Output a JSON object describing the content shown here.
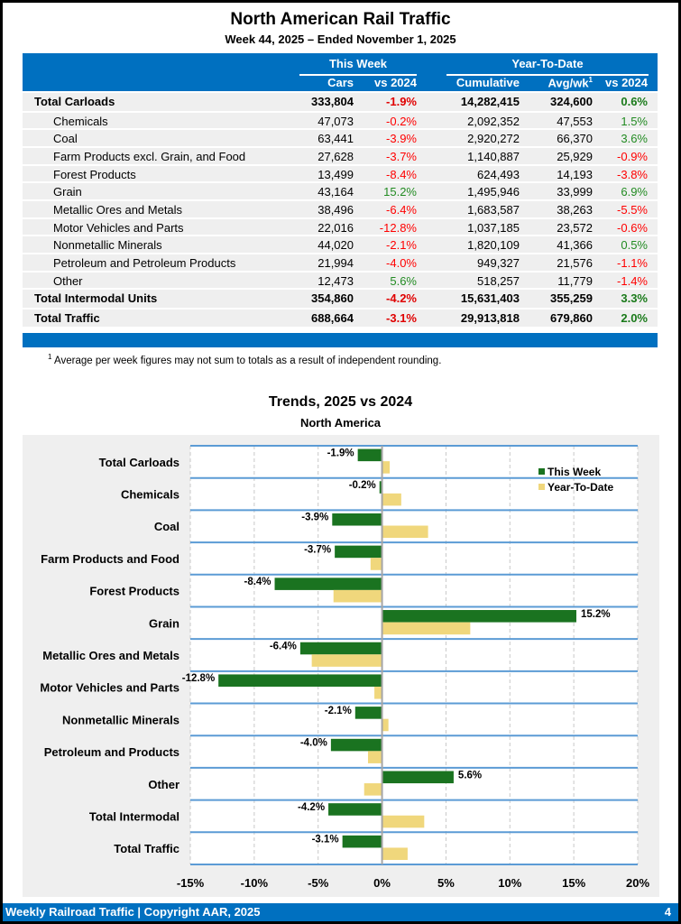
{
  "header": {
    "title": "North American Rail Traffic",
    "subtitle": "Week 44, 2025 – Ended November 1, 2025"
  },
  "table": {
    "groups": {
      "this_week": "This Week",
      "ytd": "Year-To-Date"
    },
    "columns": {
      "cars": "Cars",
      "vs2024_week": "vs 2024",
      "cumulative": "Cumulative",
      "avgwk": "Avg/wk",
      "avgwk_sup": "1",
      "vs2024_ytd": "vs 2024"
    },
    "rows": [
      {
        "label": "Total Carloads",
        "total": true,
        "cars": "333,804",
        "week_vs": "-1.9%",
        "cumulative": "14,282,415",
        "avgwk": "324,600",
        "ytd_vs": "0.6%"
      },
      {
        "label": "Chemicals",
        "total": false,
        "cars": "47,073",
        "week_vs": "-0.2%",
        "cumulative": "2,092,352",
        "avgwk": "47,553",
        "ytd_vs": "1.5%"
      },
      {
        "label": "Coal",
        "total": false,
        "cars": "63,441",
        "week_vs": "-3.9%",
        "cumulative": "2,920,272",
        "avgwk": "66,370",
        "ytd_vs": "3.6%"
      },
      {
        "label": "Farm Products excl. Grain, and Food",
        "total": false,
        "cars": "27,628",
        "week_vs": "-3.7%",
        "cumulative": "1,140,887",
        "avgwk": "25,929",
        "ytd_vs": "-0.9%"
      },
      {
        "label": "Forest Products",
        "total": false,
        "cars": "13,499",
        "week_vs": "-8.4%",
        "cumulative": "624,493",
        "avgwk": "14,193",
        "ytd_vs": "-3.8%"
      },
      {
        "label": "Grain",
        "total": false,
        "cars": "43,164",
        "week_vs": "15.2%",
        "cumulative": "1,495,946",
        "avgwk": "33,999",
        "ytd_vs": "6.9%"
      },
      {
        "label": "Metallic Ores and Metals",
        "total": false,
        "cars": "38,496",
        "week_vs": "-6.4%",
        "cumulative": "1,683,587",
        "avgwk": "38,263",
        "ytd_vs": "-5.5%"
      },
      {
        "label": "Motor Vehicles and Parts",
        "total": false,
        "cars": "22,016",
        "week_vs": "-12.8%",
        "cumulative": "1,037,185",
        "avgwk": "23,572",
        "ytd_vs": "-0.6%"
      },
      {
        "label": "Nonmetallic Minerals",
        "total": false,
        "cars": "44,020",
        "week_vs": "-2.1%",
        "cumulative": "1,820,109",
        "avgwk": "41,366",
        "ytd_vs": "0.5%"
      },
      {
        "label": "Petroleum and Petroleum Products",
        "total": false,
        "cars": "21,994",
        "week_vs": "-4.0%",
        "cumulative": "949,327",
        "avgwk": "21,576",
        "ytd_vs": "-1.1%"
      },
      {
        "label": "Other",
        "total": false,
        "cars": "12,473",
        "week_vs": "5.6%",
        "cumulative": "518,257",
        "avgwk": "11,779",
        "ytd_vs": "-1.4%"
      },
      {
        "label": "Total Intermodal Units",
        "total": true,
        "cars": "354,860",
        "week_vs": "-4.2%",
        "cumulative": "15,631,403",
        "avgwk": "355,259",
        "ytd_vs": "3.3%"
      },
      {
        "label": "Total Traffic",
        "total": true,
        "cars": "688,664",
        "week_vs": "-3.1%",
        "cumulative": "29,913,818",
        "avgwk": "679,860",
        "ytd_vs": "2.0%"
      }
    ],
    "footnote_mark": "1",
    "footnote": "Average per week figures may not sum to totals as a result of independent rounding."
  },
  "colors": {
    "brand_blue": "#0070c0",
    "negative": "#ff0000",
    "positive": "#228b22",
    "this_week_bar": "#1a7320",
    "ytd_bar": "#f0d77c"
  },
  "chart_data": {
    "type": "bar",
    "orientation": "horizontal",
    "title": "Trends, 2025 vs 2024",
    "subtitle": "North America",
    "categories": [
      "Total Carloads",
      "Chemicals",
      "Coal",
      "Farm Products and Food",
      "Forest Products",
      "Grain",
      "Metallic Ores and Metals",
      "Motor Vehicles and Parts",
      "Nonmetallic Minerals",
      "Petroleum and Products",
      "Other",
      "Total Intermodal",
      "Total Traffic"
    ],
    "series": [
      {
        "name": "This Week",
        "values": [
          -1.9,
          -0.2,
          -3.9,
          -3.7,
          -8.4,
          15.2,
          -6.4,
          -12.8,
          -2.1,
          -4.0,
          5.6,
          -4.2,
          -3.1
        ],
        "labels": [
          "-1.9%",
          "-0.2%",
          "-3.9%",
          "-3.7%",
          "-8.4%",
          "15.2%",
          "-6.4%",
          "-12.8%",
          "-2.1%",
          "-4.0%",
          "5.6%",
          "-4.2%",
          "-3.1%"
        ]
      },
      {
        "name": "Year-To-Date",
        "values": [
          0.6,
          1.5,
          3.6,
          -0.9,
          -3.8,
          6.9,
          -5.5,
          -0.6,
          0.5,
          -1.1,
          -1.4,
          3.3,
          2.0
        ]
      }
    ],
    "xlabel": "",
    "ylabel": "",
    "xlim": [
      -15,
      20
    ],
    "xticks": [
      -15,
      -10,
      -5,
      0,
      5,
      10,
      15,
      20
    ],
    "xtick_labels": [
      "-15%",
      "-10%",
      "-5%",
      "0%",
      "5%",
      "10%",
      "15%",
      "20%"
    ],
    "grid": true,
    "legend": "top-right"
  },
  "footer": {
    "left": "Weekly Railroad Traffic | Copyright AAR, 2025",
    "page": "4"
  }
}
